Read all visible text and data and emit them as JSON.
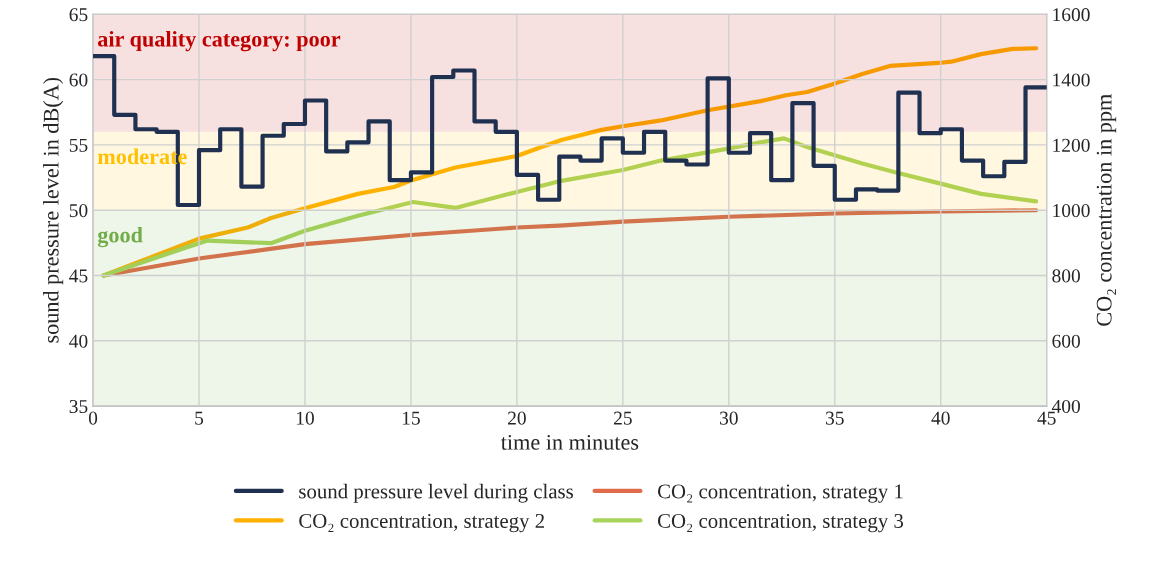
{
  "chart_data": {
    "type": "line",
    "xlabel": "time in minutes",
    "ylabel": "sound pressure level in dB(A)",
    "y2label": "CO₂ concentration in ppm",
    "xlim": [
      0,
      45
    ],
    "xticks": [
      0,
      5,
      10,
      15,
      20,
      25,
      30,
      35,
      40,
      45
    ],
    "ylim": [
      35,
      65
    ],
    "yticks": [
      35,
      40,
      45,
      50,
      55,
      60,
      65
    ],
    "y2lim": [
      400,
      1600
    ],
    "y2ticks": [
      400,
      600,
      800,
      1000,
      1200,
      1400,
      1600
    ],
    "grid": true,
    "legend": "bottom",
    "bands": [
      {
        "axis": "y",
        "from": 56,
        "to": 65,
        "label": "air quality category: poor",
        "color": "#c00000"
      },
      {
        "axis": "y",
        "from": 50,
        "to": 56,
        "label": "moderate",
        "color": "#ffc000"
      },
      {
        "axis": "y",
        "from": 35,
        "to": 50,
        "label": "good",
        "color": "#70ad47"
      }
    ],
    "series": [
      {
        "name": "sound pressure level during class",
        "type": "step",
        "color": "#1f3050",
        "x": [
          0,
          1,
          2,
          3,
          4,
          5,
          6,
          7,
          8,
          9,
          10,
          11,
          12,
          13,
          14,
          15,
          16,
          17,
          18,
          19,
          20,
          21,
          22,
          23,
          24,
          25,
          26,
          27,
          28,
          29,
          30,
          31,
          32,
          33,
          34,
          35,
          36,
          37,
          38,
          39,
          40,
          41,
          42,
          43,
          44,
          45
        ],
        "values": [
          61.8,
          57.3,
          56.2,
          56.0,
          50.4,
          54.6,
          56.2,
          51.8,
          55.7,
          56.6,
          58.4,
          54.5,
          55.2,
          56.8,
          52.3,
          52.9,
          60.2,
          60.7,
          56.8,
          56.0,
          52.7,
          50.8,
          54.1,
          53.8,
          55.5,
          54.4,
          56.0,
          53.8,
          53.5,
          60.1,
          54.4,
          55.9,
          52.3,
          58.2,
          53.4,
          50.8,
          51.6,
          51.5,
          59.0,
          55.9,
          56.2,
          53.8,
          52.6,
          53.7,
          59.4,
          59.4
        ]
      },
      {
        "name": "CO₂ concentration, strategy 1",
        "axis": "y2",
        "color": "#e06c4c",
        "x": [
          0.5,
          5,
          10,
          15,
          20,
          22,
          25,
          30,
          35,
          40,
          44.5
        ],
        "values": [
          800,
          852,
          896,
          924,
          947,
          953,
          965,
          980,
          990,
          996,
          1000
        ]
      },
      {
        "name": "CO₂ concentration, strategy 2",
        "axis": "y2",
        "color": "#ffb000",
        "x": [
          0.5,
          5,
          7.3,
          8.4,
          10,
          12.5,
          14.2,
          15,
          17.1,
          20,
          21,
          22.1,
          24,
          25,
          26.8,
          29,
          31.5,
          32.7,
          33.7,
          34.9,
          36.3,
          37.6,
          39.9,
          40.5,
          41.9,
          43.4,
          44.5
        ],
        "values": [
          800,
          913,
          947,
          976,
          1006,
          1050,
          1071,
          1091,
          1131,
          1166,
          1190,
          1215,
          1246,
          1257,
          1275,
          1306,
          1334,
          1352,
          1362,
          1386,
          1417,
          1442,
          1451,
          1455,
          1478,
          1494,
          1496
        ]
      },
      {
        "name": "CO₂ concentration, strategy 3",
        "axis": "y2",
        "color": "#a9d45c",
        "x": [
          0.5,
          4.4,
          5.4,
          8.4,
          10,
          12.5,
          15.1,
          17.1,
          20,
          22.1,
          25,
          26.8,
          29.9,
          31.5,
          32.6,
          33.8,
          36.3,
          37.8,
          39.9,
          41.9,
          44.5
        ],
        "values": [
          800,
          886,
          907,
          899,
          937,
          983,
          1025,
          1007,
          1056,
          1090,
          1123,
          1152,
          1188,
          1208,
          1220,
          1191,
          1143,
          1117,
          1083,
          1050,
          1027
        ]
      }
    ]
  }
}
